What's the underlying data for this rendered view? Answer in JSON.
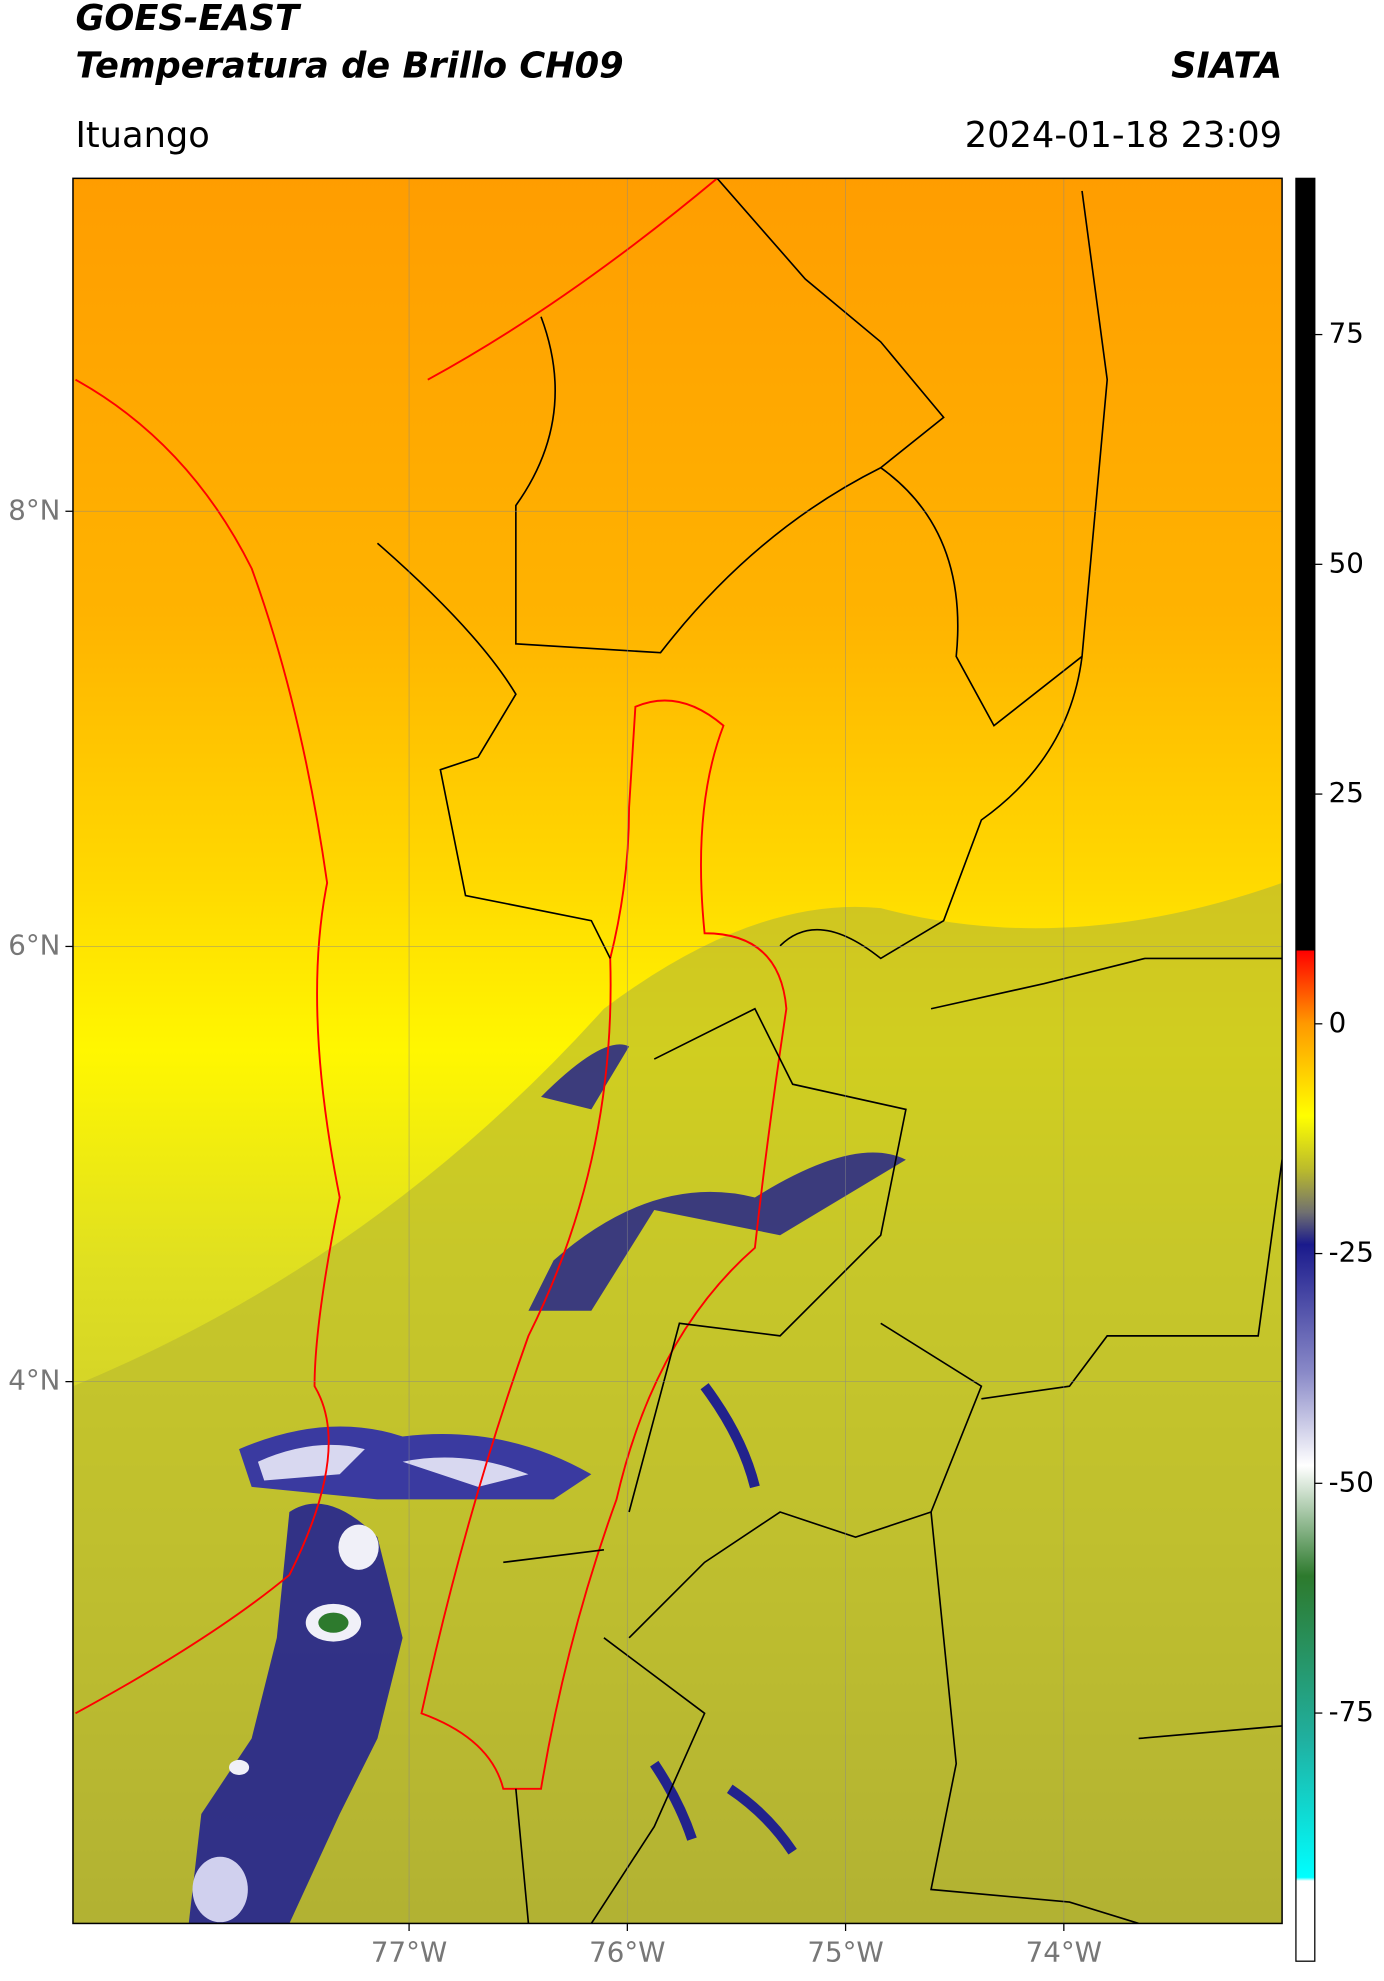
{
  "header": {
    "title": "GOES-EAST",
    "subtitle": "Temperatura de Brillo CH09",
    "agency": "SIATA",
    "region": "Ituango",
    "date": "2024-01-18 23:09"
  },
  "map": {
    "xlim": [
      -78.54,
      -73.0
    ],
    "ylim": [
      1.51,
      9.53
    ],
    "xticks": [
      {
        "value": -77,
        "label": "77°W"
      },
      {
        "value": -76,
        "label": "76°W"
      },
      {
        "value": -75,
        "label": "75°W"
      },
      {
        "value": -74,
        "label": "74°W"
      }
    ],
    "yticks": [
      {
        "value": 8,
        "label": "8°N"
      },
      {
        "value": 6,
        "label": "6°N"
      },
      {
        "value": 4,
        "label": "4°N"
      }
    ],
    "grid": true
  },
  "colorbar": {
    "ylim": [
      -102,
      92
    ],
    "yticks": [
      75,
      50,
      25,
      0,
      -25,
      -50,
      -75
    ]
  }
}
